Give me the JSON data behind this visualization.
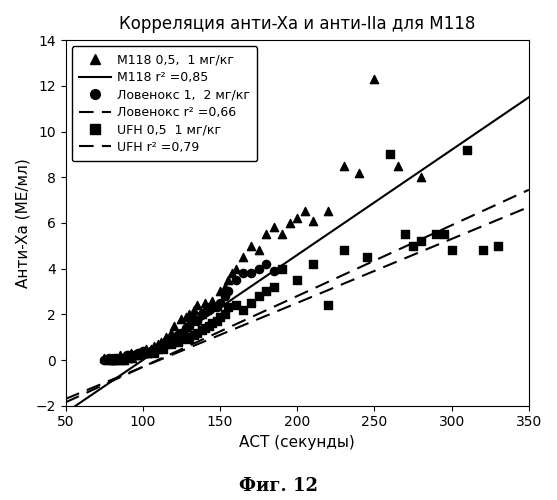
{
  "title": "Корреляция анти-Xa и анти-IIa для М118",
  "xlabel": "АСТ (секунды)",
  "ylabel": "Анти-Xa (МЕ/мл)",
  "caption": "Фиг. 12",
  "xlim": [
    50,
    350
  ],
  "ylim": [
    -2,
    14
  ],
  "xticks": [
    50,
    100,
    150,
    200,
    250,
    300,
    350
  ],
  "yticks": [
    -2,
    0,
    2,
    4,
    6,
    8,
    10,
    12,
    14
  ],
  "m118_x": [
    75,
    78,
    80,
    82,
    83,
    85,
    87,
    88,
    90,
    92,
    93,
    95,
    97,
    100,
    102,
    103,
    105,
    107,
    110,
    112,
    115,
    118,
    120,
    125,
    128,
    130,
    133,
    135,
    138,
    140,
    142,
    145,
    148,
    150,
    153,
    155,
    158,
    160,
    165,
    170,
    175,
    180,
    185,
    190,
    195,
    200,
    205,
    210,
    220,
    230,
    240,
    250,
    265,
    280
  ],
  "m118_y": [
    0.1,
    0.0,
    0.1,
    0.0,
    0.1,
    0.2,
    0.1,
    0.0,
    0.2,
    0.3,
    0.1,
    0.2,
    0.3,
    0.4,
    0.5,
    0.3,
    0.5,
    0.6,
    0.7,
    0.8,
    1.0,
    1.2,
    1.5,
    1.8,
    1.9,
    2.0,
    2.2,
    2.4,
    2.0,
    2.5,
    2.3,
    2.6,
    2.4,
    3.0,
    3.2,
    3.5,
    3.8,
    4.0,
    4.5,
    5.0,
    4.8,
    5.5,
    5.8,
    5.5,
    6.0,
    6.2,
    6.5,
    6.1,
    6.5,
    8.5,
    8.2,
    12.3,
    8.5,
    8.0
  ],
  "lovenox_x": [
    75,
    78,
    80,
    82,
    85,
    87,
    90,
    92,
    95,
    97,
    100,
    103,
    105,
    108,
    110,
    112,
    115,
    118,
    120,
    123,
    125,
    128,
    130,
    133,
    135,
    138,
    140,
    143,
    145,
    148,
    150,
    153,
    155,
    160,
    165,
    170,
    175,
    180,
    185
  ],
  "lovenox_y": [
    0.0,
    0.1,
    0.0,
    0.1,
    0.1,
    0.0,
    0.2,
    0.1,
    0.2,
    0.3,
    0.4,
    0.3,
    0.4,
    0.5,
    0.5,
    0.6,
    0.8,
    0.9,
    1.0,
    1.1,
    1.2,
    1.4,
    1.5,
    1.8,
    1.7,
    2.0,
    2.1,
    2.2,
    2.3,
    2.3,
    2.5,
    2.8,
    3.0,
    3.5,
    3.8,
    3.8,
    4.0,
    4.2,
    3.9
  ],
  "ufh_x": [
    80,
    83,
    87,
    90,
    93,
    97,
    100,
    103,
    107,
    110,
    113,
    115,
    118,
    120,
    123,
    125,
    128,
    130,
    133,
    135,
    138,
    140,
    143,
    145,
    148,
    150,
    153,
    155,
    160,
    165,
    170,
    175,
    180,
    185,
    190,
    200,
    210,
    220,
    230,
    245,
    260,
    270,
    275,
    280,
    290,
    295,
    300,
    310,
    320,
    330
  ],
  "ufh_y": [
    0.0,
    0.0,
    0.1,
    0.1,
    0.2,
    0.2,
    0.3,
    0.3,
    0.3,
    0.5,
    0.5,
    0.7,
    0.7,
    0.8,
    0.8,
    0.9,
    1.0,
    0.9,
    1.1,
    1.2,
    1.3,
    1.4,
    1.5,
    1.6,
    1.7,
    1.9,
    2.0,
    2.3,
    2.4,
    2.2,
    2.5,
    2.8,
    3.0,
    3.2,
    4.0,
    3.5,
    4.2,
    2.4,
    4.8,
    4.5,
    9.0,
    5.5,
    5.0,
    5.2,
    5.5,
    5.5,
    4.8,
    9.2,
    4.8,
    5.0
  ],
  "m118_line": {
    "slope": 0.046,
    "intercept": -4.6,
    "color": "#000000",
    "linestyle": "solid"
  },
  "lovenox_line": {
    "slope": 0.031,
    "intercept": -3.4,
    "color": "#000000",
    "linestyle": "dashed"
  },
  "ufh_line": {
    "slope": 0.028,
    "intercept": -3.1,
    "color": "#000000",
    "linestyle": "dashed"
  },
  "legend_labels": {
    "m118_scatter": "М118 0,5,  1 мг/кг",
    "m118_line": "М118 r² =0,85",
    "lovenox_scatter": "Ловенокс 1,  2 мг/кг",
    "lovenox_line": "Ловенокс r² =0,66",
    "ufh_scatter": "UFH 0,5  1 мг/кг",
    "ufh_line": "UFH r² =0,79"
  },
  "marker_color": "#000000",
  "background_color": "#ffffff",
  "title_fontsize": 12,
  "axis_label_fontsize": 11,
  "tick_fontsize": 10,
  "legend_fontsize": 9,
  "caption_fontsize": 13
}
